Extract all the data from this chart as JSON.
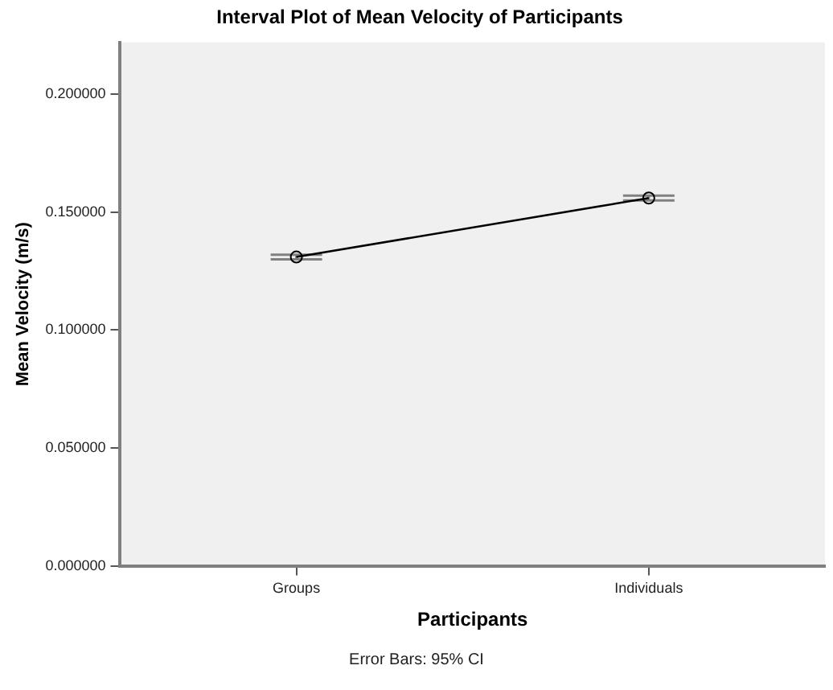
{
  "chart_data": {
    "type": "line",
    "title": "Interval Plot of Mean Velocity of Participants",
    "xlabel": "Participants",
    "ylabel": "Mean Velocity (m/s)",
    "categories": [
      "Groups",
      "Individuals"
    ],
    "series": [
      {
        "color": "#000000",
        "values": [
          0.131,
          0.156
        ],
        "errors": [
          0.001,
          0.001
        ]
      }
    ],
    "ylim": [
      0,
      0.222
    ],
    "yticks": [
      {
        "value": 0,
        "label": "0.000000"
      },
      {
        "value": 0.05,
        "label": "0.050000"
      },
      {
        "value": 0.1,
        "label": "0.100000"
      },
      {
        "value": 0.15,
        "label": "0.150000"
      },
      {
        "value": 0.2,
        "label": "0.200000"
      }
    ],
    "marker": "circle",
    "line_style": "solid",
    "grid": false,
    "legend": false,
    "annotations": [
      "Error Bars: 95% CI"
    ]
  }
}
